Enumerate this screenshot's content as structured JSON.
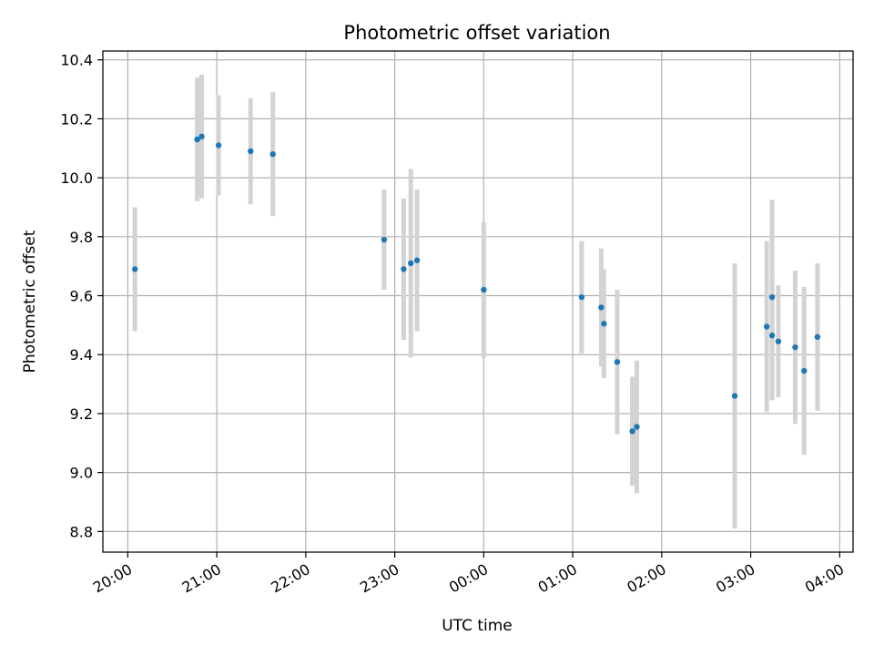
{
  "chart_data": {
    "type": "scatter",
    "title": "Photometric offset variation",
    "xlabel": "UTC time",
    "ylabel": "Photometric offset",
    "x_axis": {
      "range_hours": [
        19.72,
        28.15
      ],
      "ticks": [
        {
          "hour": 20,
          "label": "20:00"
        },
        {
          "hour": 21,
          "label": "21:00"
        },
        {
          "hour": 22,
          "label": "22:00"
        },
        {
          "hour": 23,
          "label": "23:00"
        },
        {
          "hour": 24,
          "label": "00:00"
        },
        {
          "hour": 25,
          "label": "01:00"
        },
        {
          "hour": 26,
          "label": "02:00"
        },
        {
          "hour": 27,
          "label": "03:00"
        },
        {
          "hour": 28,
          "label": "04:00"
        }
      ]
    },
    "y_axis": {
      "range": [
        8.73,
        10.43
      ],
      "ticks": [
        {
          "value": 8.8,
          "label": "8.8"
        },
        {
          "value": 9.0,
          "label": "9.0"
        },
        {
          "value": 9.2,
          "label": "9.2"
        },
        {
          "value": 9.4,
          "label": "9.4"
        },
        {
          "value": 9.6,
          "label": "9.6"
        },
        {
          "value": 9.8,
          "label": "9.8"
        },
        {
          "value": 10.0,
          "label": "10.0"
        },
        {
          "value": 10.2,
          "label": "10.2"
        },
        {
          "value": 10.4,
          "label": "10.4"
        }
      ]
    },
    "grid": true,
    "colors": {
      "point": "#1f77b4",
      "errorbar": "#d3d3d3",
      "grid": "#b0b0b0"
    },
    "points": [
      {
        "x": 20.08,
        "y": 9.69,
        "err": 0.21
      },
      {
        "x": 20.78,
        "y": 10.13,
        "err": 0.21
      },
      {
        "x": 20.83,
        "y": 10.14,
        "err": 0.21
      },
      {
        "x": 21.02,
        "y": 10.11,
        "err": 0.17
      },
      {
        "x": 21.38,
        "y": 10.09,
        "err": 0.18
      },
      {
        "x": 21.63,
        "y": 10.08,
        "err": 0.21
      },
      {
        "x": 22.88,
        "y": 9.79,
        "err": 0.17
      },
      {
        "x": 23.1,
        "y": 9.69,
        "err": 0.24
      },
      {
        "x": 23.18,
        "y": 9.71,
        "err": 0.32
      },
      {
        "x": 23.25,
        "y": 9.72,
        "err": 0.24
      },
      {
        "x": 24.0,
        "y": 9.62,
        "err": 0.23
      },
      {
        "x": 25.1,
        "y": 9.595,
        "err": 0.19
      },
      {
        "x": 25.32,
        "y": 9.56,
        "err": 0.2
      },
      {
        "x": 25.35,
        "y": 9.505,
        "err": 0.185
      },
      {
        "x": 25.5,
        "y": 9.375,
        "err": 0.245
      },
      {
        "x": 25.67,
        "y": 9.14,
        "err": 0.185
      },
      {
        "x": 25.72,
        "y": 9.155,
        "err": 0.225
      },
      {
        "x": 26.82,
        "y": 9.26,
        "err": 0.45
      },
      {
        "x": 27.18,
        "y": 9.495,
        "err": 0.29
      },
      {
        "x": 27.24,
        "y": 9.595,
        "err": 0.33
      },
      {
        "x": 27.24,
        "y": 9.465,
        "err": 0.22
      },
      {
        "x": 27.31,
        "y": 9.445,
        "err": 0.19
      },
      {
        "x": 27.5,
        "y": 9.425,
        "err": 0.26
      },
      {
        "x": 27.6,
        "y": 9.345,
        "err": 0.285
      },
      {
        "x": 27.75,
        "y": 9.46,
        "err": 0.25
      }
    ]
  }
}
